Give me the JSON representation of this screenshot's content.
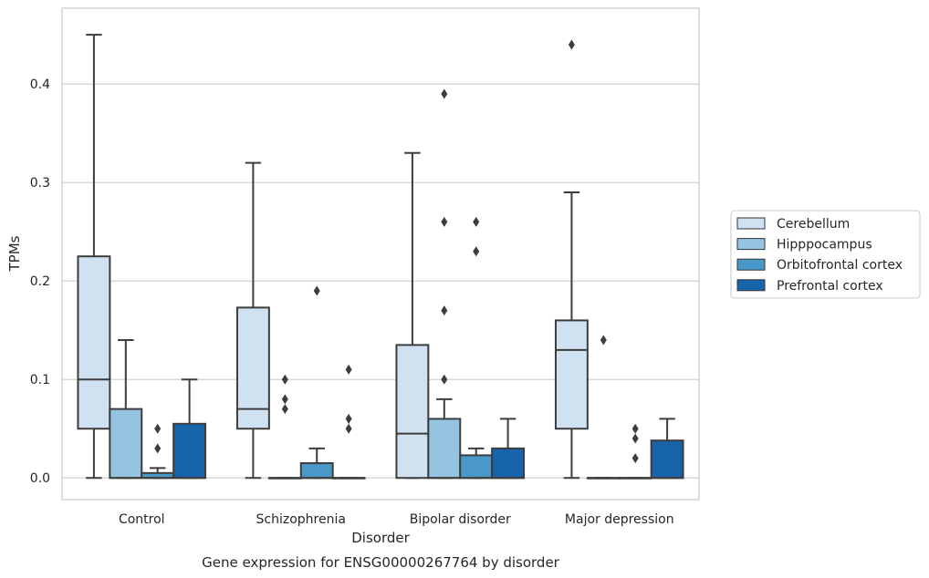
{
  "chart_data": {
    "type": "box",
    "xlabel": "Disorder",
    "ylabel": "TPMs",
    "caption": "Gene expression for ENSG00000267764 by disorder",
    "categories": [
      "Control",
      "Schizophrenia",
      "Bipolar disorder",
      "Major depression"
    ],
    "ylim": [
      -0.022,
      0.477
    ],
    "yticks": [
      0.0,
      0.1,
      0.2,
      0.3,
      0.4
    ],
    "ytick_labels": [
      "0.0",
      "0.1",
      "0.2",
      "0.3",
      "0.4"
    ],
    "grid": true,
    "legend_position": "right",
    "series": [
      {
        "name": "Cerebellum",
        "color": "#d0e1f2",
        "boxes": [
          {
            "whislo": 0.0,
            "q1": 0.05,
            "med": 0.1,
            "q3": 0.225,
            "whishi": 0.45,
            "fliers": []
          },
          {
            "whislo": 0.0,
            "q1": 0.05,
            "med": 0.07,
            "q3": 0.173,
            "whishi": 0.32,
            "fliers": []
          },
          {
            "whislo": 0.0,
            "q1": 0.0,
            "med": 0.045,
            "q3": 0.135,
            "whishi": 0.33,
            "fliers": []
          },
          {
            "whislo": 0.0,
            "q1": 0.05,
            "med": 0.13,
            "q3": 0.16,
            "whishi": 0.29,
            "fliers": [
              0.44
            ]
          }
        ]
      },
      {
        "name": "Hipppocampus",
        "color": "#94c4df",
        "boxes": [
          {
            "whislo": 0.0,
            "q1": 0.0,
            "med": 0.0,
            "q3": 0.07,
            "whishi": 0.14,
            "fliers": []
          },
          {
            "whislo": 0.0,
            "q1": 0.0,
            "med": 0.0,
            "q3": 0.0,
            "whishi": 0.0,
            "fliers": [
              0.1,
              0.08,
              0.07
            ]
          },
          {
            "whislo": 0.0,
            "q1": 0.0,
            "med": 0.0,
            "q3": 0.06,
            "whishi": 0.08,
            "fliers": [
              0.39,
              0.26,
              0.17,
              0.1
            ]
          },
          {
            "whislo": 0.0,
            "q1": 0.0,
            "med": 0.0,
            "q3": 0.0,
            "whishi": 0.0,
            "fliers": [
              0.14
            ]
          }
        ]
      },
      {
        "name": "Orbitofrontal cortex",
        "color": "#4a98c9",
        "boxes": [
          {
            "whislo": 0.0,
            "q1": 0.0,
            "med": 0.0,
            "q3": 0.005,
            "whishi": 0.01,
            "fliers": [
              0.05,
              0.03
            ]
          },
          {
            "whislo": 0.0,
            "q1": 0.0,
            "med": 0.0,
            "q3": 0.015,
            "whishi": 0.03,
            "fliers": [
              0.19
            ]
          },
          {
            "whislo": 0.0,
            "q1": 0.0,
            "med": 0.0,
            "q3": 0.023,
            "whishi": 0.03,
            "fliers": [
              0.26,
              0.23
            ]
          },
          {
            "whislo": 0.0,
            "q1": 0.0,
            "med": 0.0,
            "q3": 0.0,
            "whishi": 0.0,
            "fliers": [
              0.05,
              0.04,
              0.02
            ]
          }
        ]
      },
      {
        "name": "Prefrontal cortex",
        "color": "#1764ab",
        "boxes": [
          {
            "whislo": 0.0,
            "q1": 0.0,
            "med": 0.0,
            "q3": 0.055,
            "whishi": 0.1,
            "fliers": []
          },
          {
            "whislo": 0.0,
            "q1": 0.0,
            "med": 0.0,
            "q3": 0.0,
            "whishi": 0.0,
            "fliers": [
              0.11,
              0.06,
              0.05
            ]
          },
          {
            "whislo": 0.0,
            "q1": 0.0,
            "med": 0.0,
            "q3": 0.03,
            "whishi": 0.06,
            "fliers": []
          },
          {
            "whislo": 0.0,
            "q1": 0.0,
            "med": 0.0,
            "q3": 0.038,
            "whishi": 0.06,
            "fliers": []
          }
        ]
      }
    ]
  }
}
